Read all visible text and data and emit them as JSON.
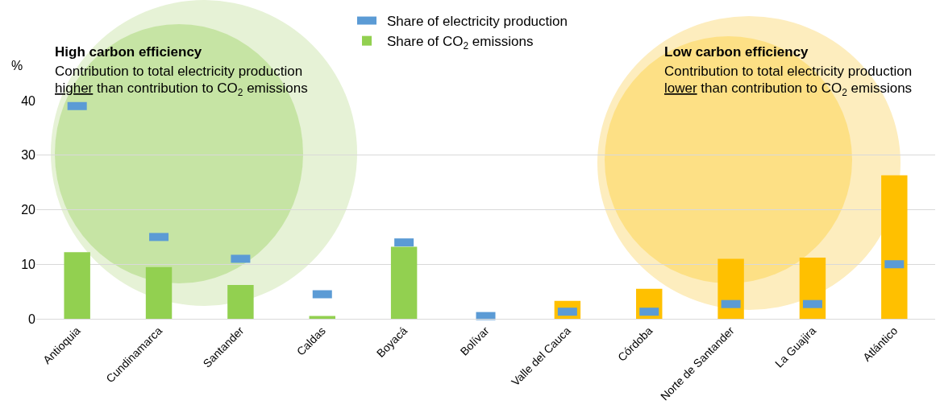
{
  "chart_data": {
    "type": "bar",
    "categories": [
      "Antioquia",
      "Cundinamarca",
      "Santander",
      "Caldas",
      "Boyacá",
      "Bolívar",
      "Valle del Cauca",
      "Córdoba",
      "Norte de Santander",
      "La Guajira",
      "Atlántico"
    ],
    "series": [
      {
        "name": "Share of electricity production",
        "type": "scatter",
        "marker": "square",
        "color": "#5b9bd5",
        "values": [
          39,
          15,
          11,
          4.5,
          14,
          0.5,
          1.3,
          1.3,
          2.7,
          2.7,
          10
        ]
      },
      {
        "name": "Share of CO$_{2}$ emissions",
        "colors": [
          "#92d050",
          "#92d050",
          "#92d050",
          "#92d050",
          "#92d050",
          "#ffc000",
          "#ffc000",
          "#ffc000",
          "#ffc000",
          "#ffc000",
          "#ffc000"
        ],
        "values": [
          12.2,
          9.5,
          6.2,
          0.5,
          13.2,
          0,
          3.3,
          5.5,
          11,
          11.2,
          26.3
        ]
      }
    ],
    "ylabel": "%",
    "ylim": [
      0,
      40
    ],
    "yticks": [
      0,
      10,
      20,
      30,
      40
    ],
    "grid": "y",
    "legend": "top",
    "annotations": [
      "High carbon efficiency",
      "Contribution to total electricity production",
      "higher than contribution to CO$_{2}$ emissions",
      "Low carbon efficiency",
      "Contribution to total electricity production",
      "lower than contribution to CO$_{2}$ emissions"
    ]
  }
}
